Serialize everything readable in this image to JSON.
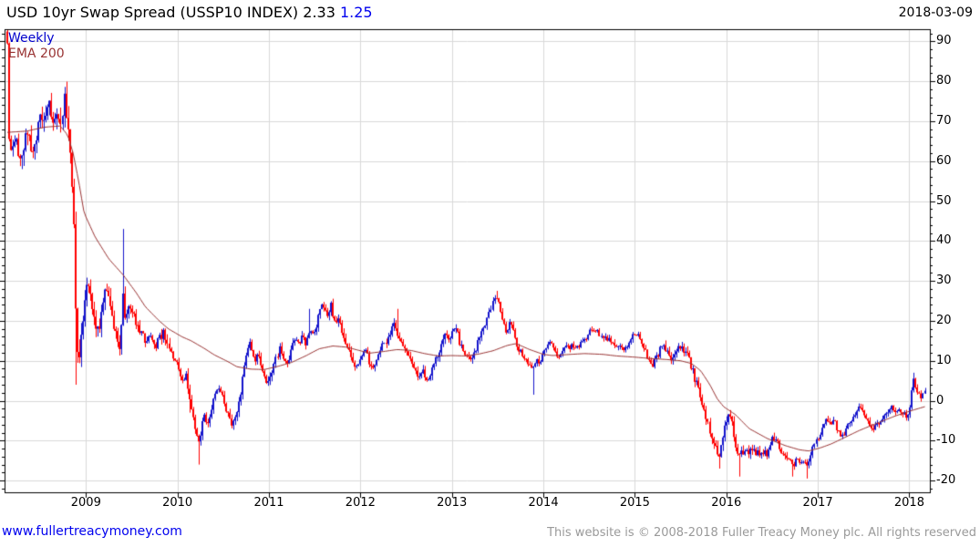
{
  "header": {
    "title": "USD 10yr Swap Spread (USSP10 INDEX)",
    "last_value": "2.33",
    "alt_value": "1.25",
    "date": "2018-03-09"
  },
  "legend": {
    "series": "Weekly",
    "overlay": "EMA 200"
  },
  "y_axis": {
    "ticks": [
      90,
      80,
      70,
      60,
      50,
      40,
      30,
      20,
      10,
      0,
      -10,
      -20
    ],
    "minor_step": 2
  },
  "x_axis": {
    "years": [
      2009,
      2010,
      2011,
      2012,
      2013,
      2014,
      2015,
      2016,
      2017,
      2018
    ]
  },
  "footer": {
    "link": "www.fullertreacymoney.com",
    "copyright": "This website is © 2008-2018 Fuller Treacy Money plc. All rights reserved"
  },
  "colors": {
    "up": "#1414cc",
    "down": "#ff0000",
    "ema": "#993333",
    "grid": "#d9d9d9",
    "axis": "#000000",
    "text": "#000000",
    "link": "#0000ee",
    "alt_value": "#0000ee",
    "copyright": "#9a9a9a"
  },
  "chart_data": {
    "type": "candlestick",
    "interval": "weekly",
    "title": "USD 10yr Swap Spread (USSP10 INDEX)",
    "ylim": [
      -23,
      93
    ],
    "xlim_years": [
      2008.14,
      2018.17
    ],
    "grid": "on",
    "legend_position": "top-left-inside",
    "close_keypoints": [
      [
        2008.14,
        88
      ],
      [
        2008.16,
        66
      ],
      [
        2008.2,
        62
      ],
      [
        2008.24,
        64
      ],
      [
        2008.28,
        60
      ],
      [
        2008.32,
        64
      ],
      [
        2008.36,
        68
      ],
      [
        2008.4,
        62
      ],
      [
        2008.44,
        65
      ],
      [
        2008.5,
        70
      ],
      [
        2008.56,
        73
      ],
      [
        2008.6,
        76
      ],
      [
        2008.64,
        71
      ],
      [
        2008.68,
        74
      ],
      [
        2008.72,
        69
      ],
      [
        2008.76,
        76
      ],
      [
        2008.8,
        70
      ],
      [
        2008.83,
        62
      ],
      [
        2008.86,
        45
      ],
      [
        2008.89,
        20
      ],
      [
        2008.91,
        9
      ],
      [
        2008.94,
        14
      ],
      [
        2008.97,
        24
      ],
      [
        2009.0,
        29
      ],
      [
        2009.03,
        31
      ],
      [
        2009.06,
        25
      ],
      [
        2009.1,
        17
      ],
      [
        2009.14,
        19
      ],
      [
        2009.18,
        24
      ],
      [
        2009.22,
        28
      ],
      [
        2009.26,
        24
      ],
      [
        2009.3,
        18
      ],
      [
        2009.34,
        15
      ],
      [
        2009.38,
        14
      ],
      [
        2009.4,
        28
      ],
      [
        2009.43,
        21
      ],
      [
        2009.47,
        24
      ],
      [
        2009.52,
        21
      ],
      [
        2009.56,
        19
      ],
      [
        2009.61,
        17
      ],
      [
        2009.66,
        15
      ],
      [
        2009.71,
        16
      ],
      [
        2009.76,
        13
      ],
      [
        2009.81,
        16
      ],
      [
        2009.85,
        17
      ],
      [
        2009.89,
        14
      ],
      [
        2009.93,
        12
      ],
      [
        2009.97,
        10
      ],
      [
        2010.01,
        8
      ],
      [
        2010.05,
        5
      ],
      [
        2010.09,
        6
      ],
      [
        2010.12,
        2
      ],
      [
        2010.16,
        -3
      ],
      [
        2010.2,
        -8
      ],
      [
        2010.23,
        -10
      ],
      [
        2010.26,
        -7
      ],
      [
        2010.29,
        -4
      ],
      [
        2010.33,
        -6
      ],
      [
        2010.37,
        -2
      ],
      [
        2010.41,
        1
      ],
      [
        2010.45,
        3
      ],
      [
        2010.49,
        1
      ],
      [
        2010.53,
        -2
      ],
      [
        2010.57,
        -5
      ],
      [
        2010.61,
        -6
      ],
      [
        2010.65,
        -3
      ],
      [
        2010.69,
        2
      ],
      [
        2010.73,
        8
      ],
      [
        2010.76,
        13
      ],
      [
        2010.8,
        15
      ],
      [
        2010.84,
        10
      ],
      [
        2010.88,
        12
      ],
      [
        2010.92,
        8
      ],
      [
        2010.96,
        6
      ],
      [
        2011.0,
        4
      ],
      [
        2011.04,
        8
      ],
      [
        2011.08,
        11
      ],
      [
        2011.12,
        13
      ],
      [
        2011.16,
        10
      ],
      [
        2011.2,
        9
      ],
      [
        2011.24,
        13
      ],
      [
        2011.28,
        15
      ],
      [
        2011.32,
        14
      ],
      [
        2011.36,
        16
      ],
      [
        2011.4,
        14
      ],
      [
        2011.44,
        17
      ],
      [
        2011.48,
        16
      ],
      [
        2011.52,
        19
      ],
      [
        2011.56,
        23
      ],
      [
        2011.6,
        24
      ],
      [
        2011.64,
        21
      ],
      [
        2011.68,
        24
      ],
      [
        2011.72,
        19
      ],
      [
        2011.76,
        21
      ],
      [
        2011.8,
        17
      ],
      [
        2011.84,
        14
      ],
      [
        2011.88,
        12
      ],
      [
        2011.92,
        10
      ],
      [
        2011.96,
        8
      ],
      [
        2012.0,
        10
      ],
      [
        2012.04,
        13
      ],
      [
        2012.08,
        11
      ],
      [
        2012.12,
        8
      ],
      [
        2012.16,
        9
      ],
      [
        2012.2,
        12
      ],
      [
        2012.24,
        14
      ],
      [
        2012.28,
        15
      ],
      [
        2012.32,
        17
      ],
      [
        2012.36,
        19
      ],
      [
        2012.4,
        17
      ],
      [
        2012.44,
        15
      ],
      [
        2012.48,
        13
      ],
      [
        2012.52,
        11
      ],
      [
        2012.56,
        9
      ],
      [
        2012.6,
        7
      ],
      [
        2012.64,
        6
      ],
      [
        2012.68,
        8
      ],
      [
        2012.72,
        5
      ],
      [
        2012.76,
        6
      ],
      [
        2012.8,
        9
      ],
      [
        2012.84,
        11
      ],
      [
        2012.88,
        14
      ],
      [
        2012.92,
        17
      ],
      [
        2012.96,
        15
      ],
      [
        2013.0,
        17
      ],
      [
        2013.04,
        19
      ],
      [
        2013.08,
        15
      ],
      [
        2013.12,
        13
      ],
      [
        2013.16,
        11
      ],
      [
        2013.2,
        10
      ],
      [
        2013.24,
        12
      ],
      [
        2013.28,
        14
      ],
      [
        2013.32,
        17
      ],
      [
        2013.36,
        19
      ],
      [
        2013.4,
        22
      ],
      [
        2013.44,
        24
      ],
      [
        2013.48,
        26
      ],
      [
        2013.52,
        23
      ],
      [
        2013.56,
        19
      ],
      [
        2013.6,
        17
      ],
      [
        2013.64,
        20
      ],
      [
        2013.68,
        16
      ],
      [
        2013.72,
        13
      ],
      [
        2013.76,
        12
      ],
      [
        2013.8,
        10
      ],
      [
        2013.84,
        9
      ],
      [
        2013.88,
        8
      ],
      [
        2013.92,
        10
      ],
      [
        2013.96,
        9
      ],
      [
        2014.0,
        12
      ],
      [
        2014.04,
        14
      ],
      [
        2014.08,
        15
      ],
      [
        2014.12,
        13
      ],
      [
        2014.16,
        11
      ],
      [
        2014.2,
        12
      ],
      [
        2014.24,
        14
      ],
      [
        2014.28,
        13
      ],
      [
        2014.32,
        14
      ],
      [
        2014.36,
        13
      ],
      [
        2014.4,
        14
      ],
      [
        2014.44,
        15
      ],
      [
        2014.48,
        16
      ],
      [
        2014.52,
        18
      ],
      [
        2014.56,
        18
      ],
      [
        2014.6,
        17
      ],
      [
        2014.64,
        16
      ],
      [
        2014.68,
        16
      ],
      [
        2014.72,
        15
      ],
      [
        2014.76,
        14
      ],
      [
        2014.8,
        14
      ],
      [
        2014.84,
        13
      ],
      [
        2014.88,
        13
      ],
      [
        2014.92,
        14
      ],
      [
        2014.96,
        16
      ],
      [
        2015.0,
        17
      ],
      [
        2015.04,
        16
      ],
      [
        2015.08,
        14
      ],
      [
        2015.12,
        12
      ],
      [
        2015.16,
        10
      ],
      [
        2015.2,
        9
      ],
      [
        2015.24,
        11
      ],
      [
        2015.28,
        13
      ],
      [
        2015.32,
        14
      ],
      [
        2015.36,
        12
      ],
      [
        2015.4,
        10
      ],
      [
        2015.44,
        12
      ],
      [
        2015.48,
        14
      ],
      [
        2015.52,
        13
      ],
      [
        2015.56,
        12
      ],
      [
        2015.6,
        10
      ],
      [
        2015.64,
        7
      ],
      [
        2015.68,
        4
      ],
      [
        2015.72,
        1
      ],
      [
        2015.76,
        -3
      ],
      [
        2015.8,
        -6
      ],
      [
        2015.84,
        -9
      ],
      [
        2015.88,
        -12
      ],
      [
        2015.92,
        -13
      ],
      [
        2015.95,
        -10
      ],
      [
        2015.98,
        -7
      ],
      [
        2016.01,
        -4
      ],
      [
        2016.04,
        -3
      ],
      [
        2016.07,
        -7
      ],
      [
        2016.1,
        -11
      ],
      [
        2016.13,
        -14
      ],
      [
        2016.17,
        -13
      ],
      [
        2016.21,
        -12
      ],
      [
        2016.25,
        -13
      ],
      [
        2016.29,
        -12
      ],
      [
        2016.33,
        -13
      ],
      [
        2016.37,
        -14
      ],
      [
        2016.41,
        -13
      ],
      [
        2016.45,
        -14
      ],
      [
        2016.49,
        -10
      ],
      [
        2016.53,
        -9
      ],
      [
        2016.57,
        -11
      ],
      [
        2016.61,
        -13
      ],
      [
        2016.65,
        -14
      ],
      [
        2016.69,
        -15
      ],
      [
        2016.73,
        -16
      ],
      [
        2016.77,
        -15
      ],
      [
        2016.81,
        -16
      ],
      [
        2016.85,
        -15
      ],
      [
        2016.89,
        -16
      ],
      [
        2016.93,
        -13
      ],
      [
        2016.97,
        -10
      ],
      [
        2017.01,
        -9
      ],
      [
        2017.05,
        -7
      ],
      [
        2017.09,
        -5
      ],
      [
        2017.13,
        -6
      ],
      [
        2017.17,
        -5
      ],
      [
        2017.21,
        -7
      ],
      [
        2017.25,
        -9
      ],
      [
        2017.29,
        -8
      ],
      [
        2017.33,
        -6
      ],
      [
        2017.37,
        -5
      ],
      [
        2017.41,
        -4
      ],
      [
        2017.45,
        -1
      ],
      [
        2017.49,
        -3
      ],
      [
        2017.53,
        -5
      ],
      [
        2017.57,
        -6
      ],
      [
        2017.61,
        -7
      ],
      [
        2017.65,
        -6
      ],
      [
        2017.69,
        -5.5
      ],
      [
        2017.73,
        -4
      ],
      [
        2017.77,
        -2.5
      ],
      [
        2017.8,
        -1.5
      ],
      [
        2017.84,
        -3
      ],
      [
        2017.88,
        -2
      ],
      [
        2017.91,
        -3.5
      ],
      [
        2017.94,
        -2.5
      ],
      [
        2017.97,
        -4.5
      ],
      [
        2018.0,
        -3
      ],
      [
        2018.05,
        5.5
      ],
      [
        2018.08,
        3
      ],
      [
        2018.11,
        1.5
      ],
      [
        2018.14,
        1
      ],
      [
        2018.17,
        2.33
      ]
    ],
    "wick_spikes": [
      {
        "t": 2008.145,
        "hi": 92
      },
      {
        "t": 2008.89,
        "lo": 4
      },
      {
        "t": 2009.4,
        "hi": 43
      },
      {
        "t": 2010.12,
        "lo": -3
      },
      {
        "t": 2010.23,
        "lo": -16
      },
      {
        "t": 2011.44,
        "hi": 23
      },
      {
        "t": 2012.4,
        "hi": 23
      },
      {
        "t": 2013.48,
        "hi": 27.5
      },
      {
        "t": 2013.88,
        "lo": 1.5
      },
      {
        "t": 2015.92,
        "lo": -17
      },
      {
        "t": 2016.13,
        "lo": -19
      },
      {
        "t": 2016.73,
        "lo": -19
      },
      {
        "t": 2016.89,
        "lo": -19.5
      },
      {
        "t": 2018.05,
        "hi": 7
      }
    ],
    "volatility_keypoints": [
      [
        2008.14,
        3.5
      ],
      [
        2008.85,
        5.0
      ],
      [
        2009.1,
        3.5
      ],
      [
        2009.5,
        2.5
      ],
      [
        2010.0,
        2.0
      ],
      [
        2011.0,
        1.8
      ],
      [
        2012.0,
        1.6
      ],
      [
        2013.0,
        1.8
      ],
      [
        2014.0,
        1.2
      ],
      [
        2015.0,
        1.4
      ],
      [
        2015.9,
        2.2
      ],
      [
        2016.5,
        1.6
      ],
      [
        2017.0,
        1.4
      ],
      [
        2018.17,
        1.2
      ]
    ],
    "ema_keypoints": [
      [
        2008.14,
        67.2
      ],
      [
        2008.35,
        67.5
      ],
      [
        2008.55,
        68.5
      ],
      [
        2008.72,
        68.8
      ],
      [
        2008.8,
        66.5
      ],
      [
        2008.86,
        62
      ],
      [
        2008.92,
        55
      ],
      [
        2008.98,
        47
      ],
      [
        2009.1,
        41
      ],
      [
        2009.25,
        35.5
      ],
      [
        2009.41,
        31.4
      ],
      [
        2009.55,
        27
      ],
      [
        2009.65,
        23.5
      ],
      [
        2009.8,
        20
      ],
      [
        2009.9,
        18
      ],
      [
        2010.05,
        16
      ],
      [
        2010.15,
        15
      ],
      [
        2010.3,
        13
      ],
      [
        2010.4,
        11.5
      ],
      [
        2010.55,
        9.8
      ],
      [
        2010.65,
        8.5
      ],
      [
        2010.8,
        7.9
      ],
      [
        2010.95,
        7.8
      ],
      [
        2011.1,
        8.6
      ],
      [
        2011.25,
        9.6
      ],
      [
        2011.4,
        11.2
      ],
      [
        2011.55,
        13
      ],
      [
        2011.7,
        13.7
      ],
      [
        2011.85,
        13.4
      ],
      [
        2012.0,
        12.5
      ],
      [
        2012.1,
        11.9
      ],
      [
        2012.25,
        12.3
      ],
      [
        2012.4,
        12.8
      ],
      [
        2012.55,
        12.6
      ],
      [
        2012.7,
        11.8
      ],
      [
        2012.85,
        11.2
      ],
      [
        2013.0,
        11.3
      ],
      [
        2013.15,
        11.2
      ],
      [
        2013.3,
        11.7
      ],
      [
        2013.45,
        12.5
      ],
      [
        2013.6,
        13.8
      ],
      [
        2013.7,
        14.3
      ],
      [
        2013.85,
        12.8
      ],
      [
        2014.0,
        11.6
      ],
      [
        2014.1,
        11.3
      ],
      [
        2014.3,
        11.6
      ],
      [
        2014.45,
        11.8
      ],
      [
        2014.65,
        11.6
      ],
      [
        2014.8,
        11.2
      ],
      [
        2015.0,
        10.9
      ],
      [
        2015.15,
        10.6
      ],
      [
        2015.35,
        10.3
      ],
      [
        2015.5,
        10
      ],
      [
        2015.62,
        9.3
      ],
      [
        2015.72,
        7.5
      ],
      [
        2015.82,
        4
      ],
      [
        2015.9,
        0.5
      ],
      [
        2015.97,
        -1.5
      ],
      [
        2016.1,
        -3.5
      ],
      [
        2016.25,
        -7
      ],
      [
        2016.45,
        -9.5
      ],
      [
        2016.65,
        -11.3
      ],
      [
        2016.8,
        -12.3
      ],
      [
        2016.9,
        -12.6
      ],
      [
        2017.03,
        -11.8
      ],
      [
        2017.15,
        -10.8
      ],
      [
        2017.25,
        -9.7
      ],
      [
        2017.45,
        -7.5
      ],
      [
        2017.65,
        -5.6
      ],
      [
        2017.85,
        -3.8
      ],
      [
        2018.05,
        -2.3
      ],
      [
        2018.17,
        -1.5
      ]
    ]
  }
}
